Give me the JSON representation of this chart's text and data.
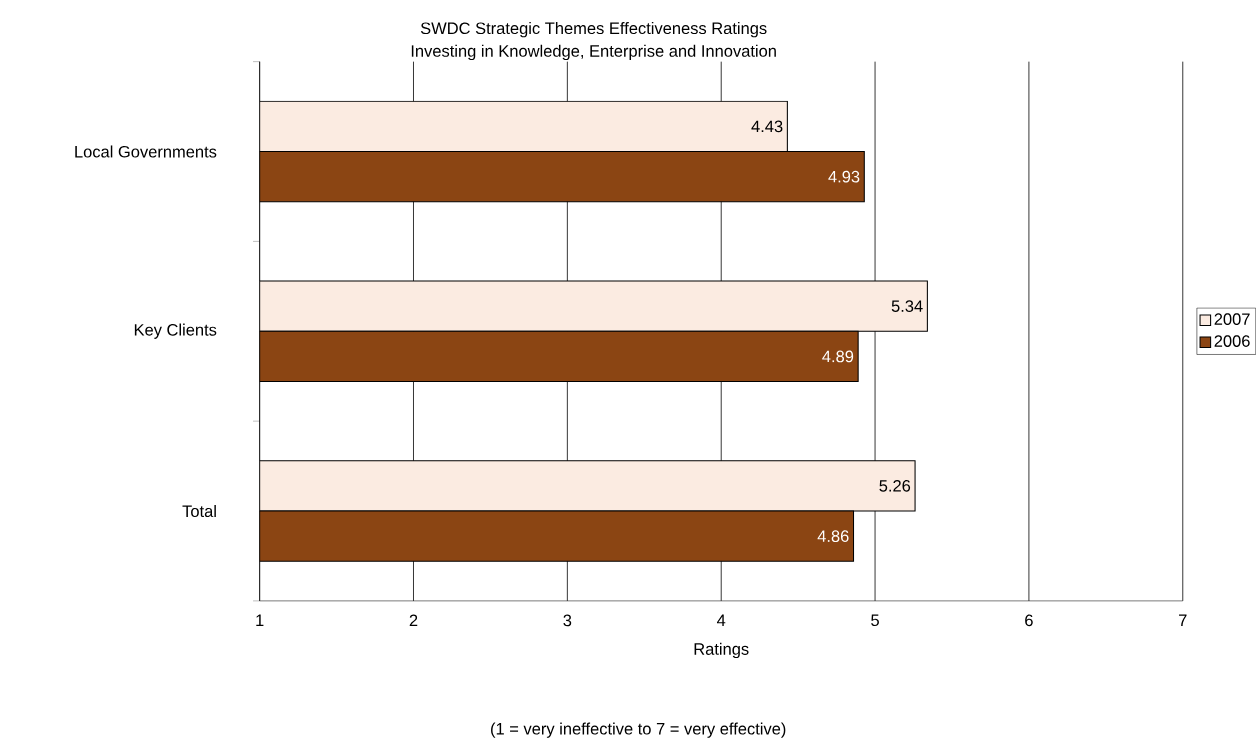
{
  "chart_data": {
    "type": "bar",
    "orientation": "horizontal",
    "title": "SWDC Strategic Themes Effectiveness Ratings",
    "subtitle": "Investing in Knowledge, Enterprise and Innovation",
    "categories": [
      "Local Governments",
      "Key Clients",
      "Total"
    ],
    "series": [
      {
        "name": "2007",
        "color": "#fbebe1",
        "values": [
          4.43,
          5.34,
          5.26
        ]
      },
      {
        "name": "2006",
        "color": "#8b4513",
        "values": [
          4.93,
          4.89,
          4.86
        ]
      }
    ],
    "xlim": [
      1,
      7
    ],
    "xticks": [
      1,
      2,
      3,
      4,
      5,
      6,
      7
    ],
    "grid": "x",
    "legend": "right",
    "data_labels": true,
    "xlabel": "Ratings",
    "annotations": [
      "(1 = very ineffective to 7 = very effective)"
    ]
  }
}
